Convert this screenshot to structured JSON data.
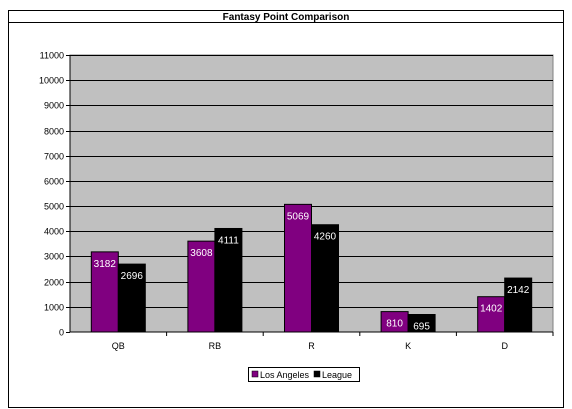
{
  "chart_data": {
    "type": "bar",
    "title": "Fantasy Point Comparison",
    "categories": [
      "QB",
      "RB",
      "R",
      "K",
      "D"
    ],
    "series": [
      {
        "name": "Los Angeles",
        "color": "#800080",
        "values": [
          3182,
          3608,
          5069,
          810,
          1402
        ]
      },
      {
        "name": "League",
        "color": "#000000",
        "values": [
          2696,
          4111,
          4260,
          695,
          2142
        ]
      }
    ],
    "ylim": [
      0,
      11000
    ],
    "y_ticks": [
      0,
      1000,
      2000,
      3000,
      4000,
      5000,
      6000,
      7000,
      8000,
      9000,
      10000,
      11000
    ],
    "grid": true,
    "plot_background": "#c0c0c0",
    "legend_position": "bottom",
    "data_label_color": "#ffffff"
  }
}
